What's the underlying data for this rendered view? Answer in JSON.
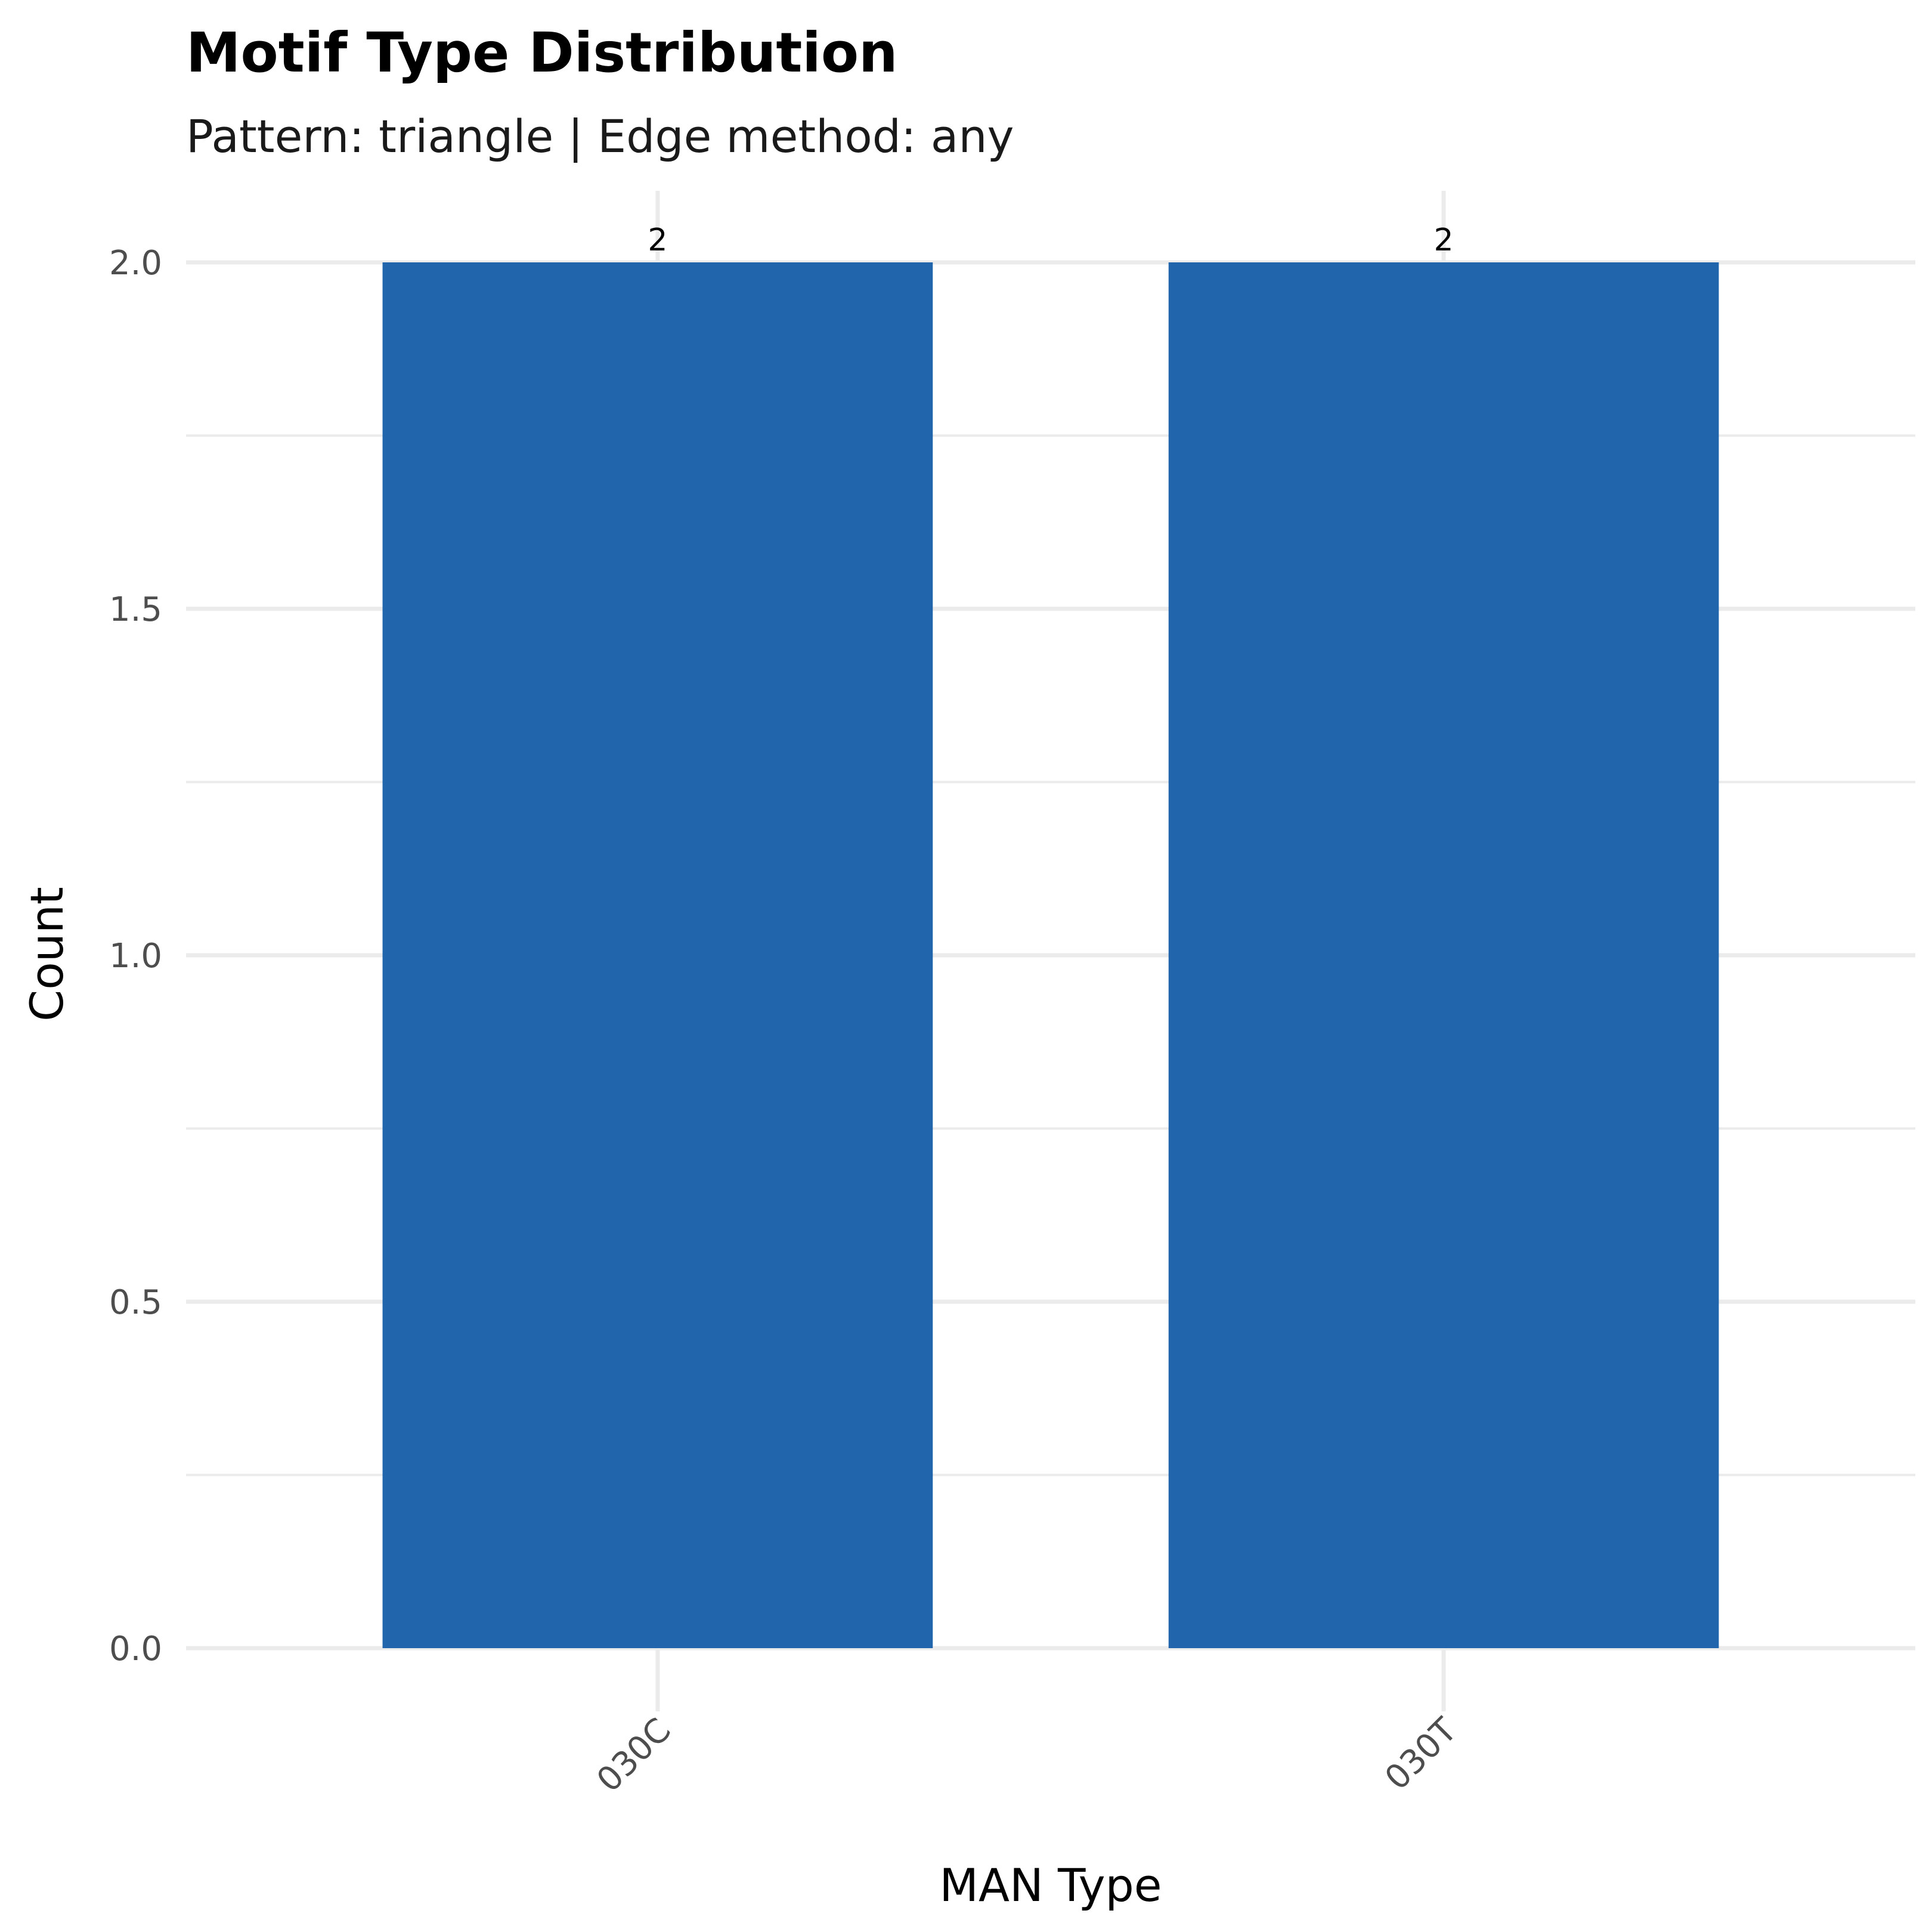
{
  "chart_data": {
    "type": "bar",
    "title": "Motif Type Distribution",
    "subtitle": "Pattern: triangle | Edge method: any",
    "xlabel": "MAN Type",
    "ylabel": "Count",
    "categories": [
      "030C",
      "030T"
    ],
    "values": [
      2,
      2
    ],
    "data_labels": [
      "2",
      "2"
    ],
    "ylim": [
      0,
      2
    ],
    "yticks": [
      0,
      0.5,
      1,
      1.5,
      2
    ],
    "ytick_labels": [
      "0.0",
      "0.5",
      "1.0",
      "1.5",
      "2.0"
    ],
    "grid": true,
    "legend": "none",
    "bar_color": "#2166AC",
    "x_tick_rotation": "45 degrees"
  }
}
